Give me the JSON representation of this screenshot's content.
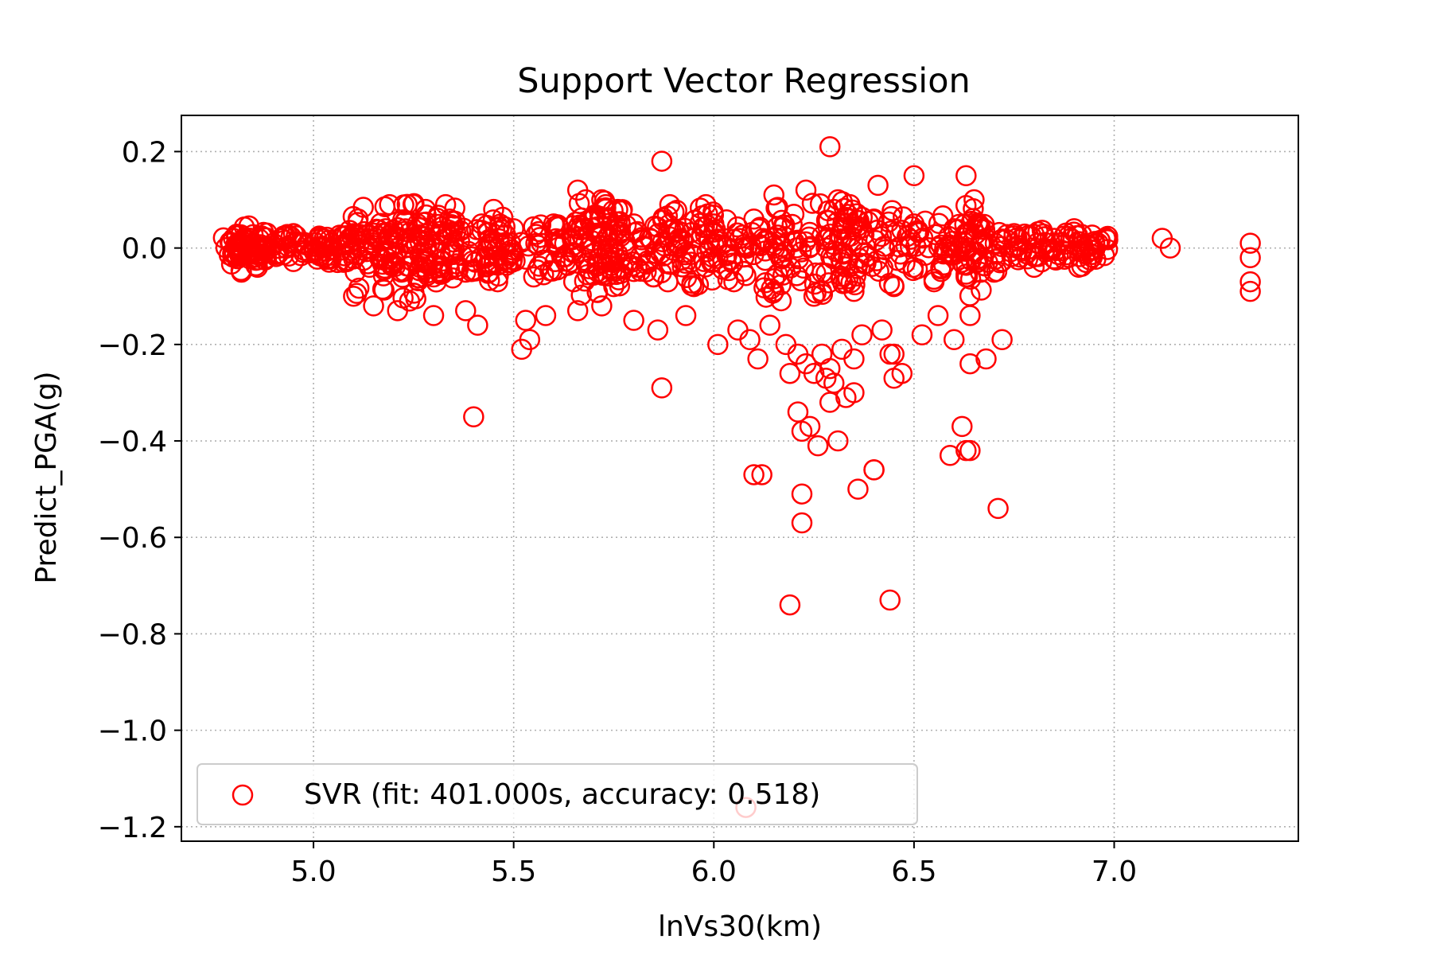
{
  "chart_data": {
    "type": "scatter",
    "title": "Support Vector Regression",
    "xlabel": "lnVs30(km)",
    "ylabel": "Predict_PGA(g)",
    "xlim": [
      4.67,
      7.46
    ],
    "ylim": [
      -1.23,
      0.275
    ],
    "xticks": [
      5.0,
      5.5,
      6.0,
      6.5,
      7.0
    ],
    "xtick_labels": [
      "5.0",
      "5.5",
      "6.0",
      "6.5",
      "7.0"
    ],
    "yticks": [
      0.2,
      0.0,
      -0.2,
      -0.4,
      -0.6,
      -0.8,
      -1.0,
      -1.2
    ],
    "ytick_labels": [
      "0.2",
      "0.0",
      "−0.2",
      "−0.4",
      "−0.6",
      "−0.8",
      "−1.0",
      "−1.2"
    ],
    "grid": true,
    "legend_position": "lower-left",
    "series": [
      {
        "name": "SVR (fit: 401.000s, accuracy: 0.518)",
        "marker": "open-circle",
        "color": "#ff0000",
        "x": [
          4.8,
          4.82,
          4.85,
          4.9,
          4.95,
          4.99,
          5.02,
          5.06,
          5.1,
          5.14,
          5.18,
          5.22,
          5.26,
          5.3,
          5.34,
          5.38,
          5.42,
          5.46,
          5.5,
          5.55,
          5.6,
          5.65,
          5.7,
          5.75,
          5.8,
          5.85,
          5.9,
          5.95,
          6.0,
          6.05,
          6.1,
          6.15,
          6.2,
          6.25,
          6.3,
          6.35,
          6.4,
          6.45,
          6.5,
          6.55,
          6.6,
          6.63,
          6.66,
          6.7,
          6.75,
          6.8,
          6.85,
          6.9,
          6.93,
          6.96,
          7.12,
          7.14,
          7.34,
          7.34,
          7.34,
          7.34,
          5.19,
          5.28,
          5.33,
          5.45,
          5.66,
          5.68,
          5.72,
          5.73,
          5.76,
          5.87,
          5.89,
          5.98,
          6.15,
          6.23,
          6.29,
          6.31,
          6.34,
          6.41,
          6.5,
          6.63,
          6.65,
          4.82,
          4.86,
          5.1,
          5.15,
          5.21,
          5.24,
          5.3,
          5.38,
          5.41,
          5.53,
          5.58,
          5.66,
          5.72,
          5.8,
          5.86,
          5.93,
          6.01,
          6.06,
          6.09,
          6.11,
          6.14,
          6.18,
          6.21,
          6.23,
          6.25,
          6.27,
          6.29,
          6.3,
          6.32,
          6.35,
          6.37,
          6.42,
          6.45,
          6.47,
          6.52,
          6.56,
          6.6,
          6.64,
          6.68,
          6.72,
          5.4,
          5.52,
          5.54,
          5.87,
          6.1,
          6.19,
          6.21,
          6.22,
          6.24,
          6.26,
          6.28,
          6.29,
          6.31,
          6.33,
          6.35,
          6.4,
          6.44,
          6.45,
          6.59,
          6.62,
          6.63,
          6.64,
          6.71,
          6.12,
          6.22,
          6.22,
          6.36,
          6.4,
          6.64,
          6.19,
          6.44,
          6.08
        ],
        "y": [
          0.02,
          0.0,
          -0.02,
          0.01,
          0.03,
          -0.01,
          0.02,
          -0.03,
          0.03,
          -0.04,
          0.04,
          -0.05,
          0.05,
          -0.06,
          0.06,
          -0.05,
          0.05,
          -0.07,
          0.04,
          -0.06,
          0.05,
          -0.07,
          0.06,
          -0.08,
          0.05,
          -0.06,
          0.04,
          -0.08,
          0.05,
          -0.07,
          0.06,
          -0.09,
          0.07,
          -0.1,
          0.08,
          -0.09,
          0.06,
          -0.08,
          0.05,
          -0.07,
          0.04,
          -0.06,
          0.05,
          -0.05,
          0.03,
          -0.04,
          0.02,
          0.04,
          -0.03,
          0.01,
          0.02,
          0.0,
          0.01,
          -0.02,
          -0.07,
          -0.09,
          0.09,
          0.08,
          0.09,
          0.08,
          0.12,
          0.1,
          0.1,
          0.09,
          0.08,
          0.18,
          0.09,
          0.09,
          0.11,
          0.12,
          0.21,
          0.1,
          0.09,
          0.13,
          0.15,
          0.15,
          0.1,
          -0.05,
          -0.04,
          -0.1,
          -0.12,
          -0.13,
          -0.11,
          -0.14,
          -0.13,
          -0.16,
          -0.15,
          -0.14,
          -0.13,
          -0.12,
          -0.15,
          -0.17,
          -0.14,
          -0.2,
          -0.17,
          -0.19,
          -0.23,
          -0.16,
          -0.2,
          -0.22,
          -0.24,
          -0.26,
          -0.22,
          -0.25,
          -0.28,
          -0.21,
          -0.23,
          -0.18,
          -0.17,
          -0.22,
          -0.26,
          -0.18,
          -0.14,
          -0.19,
          -0.14,
          -0.23,
          -0.19,
          -0.35,
          -0.21,
          -0.19,
          -0.29,
          -0.47,
          -0.26,
          -0.34,
          -0.38,
          -0.37,
          -0.41,
          -0.27,
          -0.32,
          -0.4,
          -0.31,
          -0.3,
          -0.46,
          -0.22,
          -0.27,
          -0.43,
          -0.37,
          -0.42,
          -0.24,
          -0.54,
          -0.47,
          -0.51,
          -0.57,
          -0.5,
          -0.46,
          -0.42,
          -0.74,
          -0.73,
          -1.16
        ]
      }
    ]
  }
}
